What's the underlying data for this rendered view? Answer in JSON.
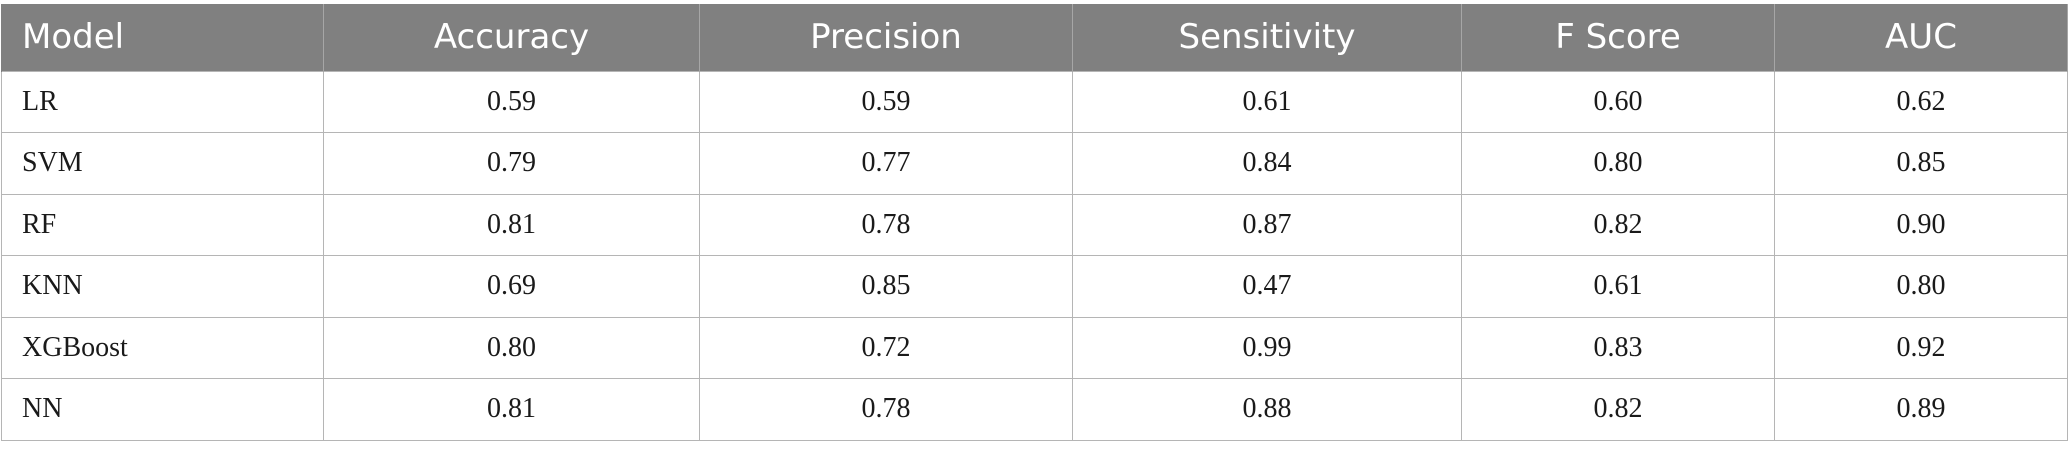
{
  "table": {
    "headers": [
      "Model",
      "Accuracy",
      "Precision",
      "Sensitivity",
      "F Score",
      "AUC"
    ],
    "rows": [
      [
        "LR",
        "0.59",
        "0.59",
        "0.61",
        "0.60",
        "0.62"
      ],
      [
        "SVM",
        "0.79",
        "0.77",
        "0.84",
        "0.80",
        "0.85"
      ],
      [
        "RF",
        "0.81",
        "0.78",
        "0.87",
        "0.82",
        "0.90"
      ],
      [
        "KNN",
        "0.69",
        "0.85",
        "0.47",
        "0.61",
        "0.80"
      ],
      [
        "XGBoost",
        "0.80",
        "0.72",
        "0.99",
        "0.83",
        "0.92"
      ],
      [
        "NN",
        "0.81",
        "0.78",
        "0.88",
        "0.82",
        "0.89"
      ]
    ]
  },
  "colors": {
    "header_bg": "#808080",
    "header_text": "#ffffff",
    "grid": "#b5b5b5",
    "body_text": "#1a1a1a"
  }
}
